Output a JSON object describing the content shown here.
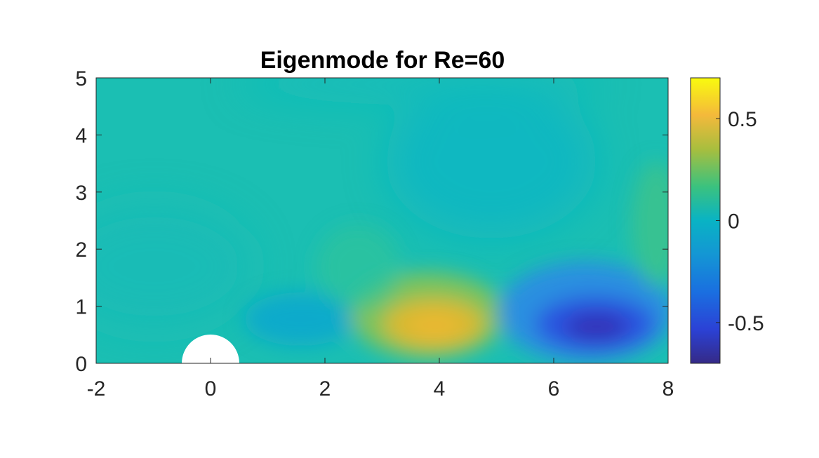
{
  "chart_data": {
    "type": "heatmap",
    "title": "Eigenmode for Re=60",
    "xlabel": "",
    "ylabel": "",
    "xlim": [
      -2,
      8
    ],
    "ylim": [
      0,
      5
    ],
    "x_ticks": [
      "-2",
      "0",
      "2",
      "4",
      "6",
      "8"
    ],
    "y_ticks": [
      "0",
      "1",
      "2",
      "3",
      "4",
      "5"
    ],
    "colorbar": {
      "clim": [
        -0.7,
        0.7
      ],
      "ticks": [
        {
          "value": 0.5,
          "label": "0.5"
        },
        {
          "value": 0,
          "label": "0"
        },
        {
          "value": -0.5,
          "label": "-0.5"
        }
      ],
      "colormap": "parula"
    },
    "obstacle": {
      "shape": "half-circle",
      "center_x": 0,
      "center_y": 0,
      "radius": 0.5
    },
    "field_features": [
      {
        "x": 1.6,
        "y": 0.8,
        "value": -0.12
      },
      {
        "x": 3.9,
        "y": 0.65,
        "value": 0.42
      },
      {
        "x": 6.7,
        "y": 0.65,
        "value": -0.62
      },
      {
        "x": 7.7,
        "y": 2.5,
        "value": 0.1
      }
    ],
    "colors": {
      "background_field": "#1bbfb3",
      "obstacle": "#ffffff"
    }
  }
}
